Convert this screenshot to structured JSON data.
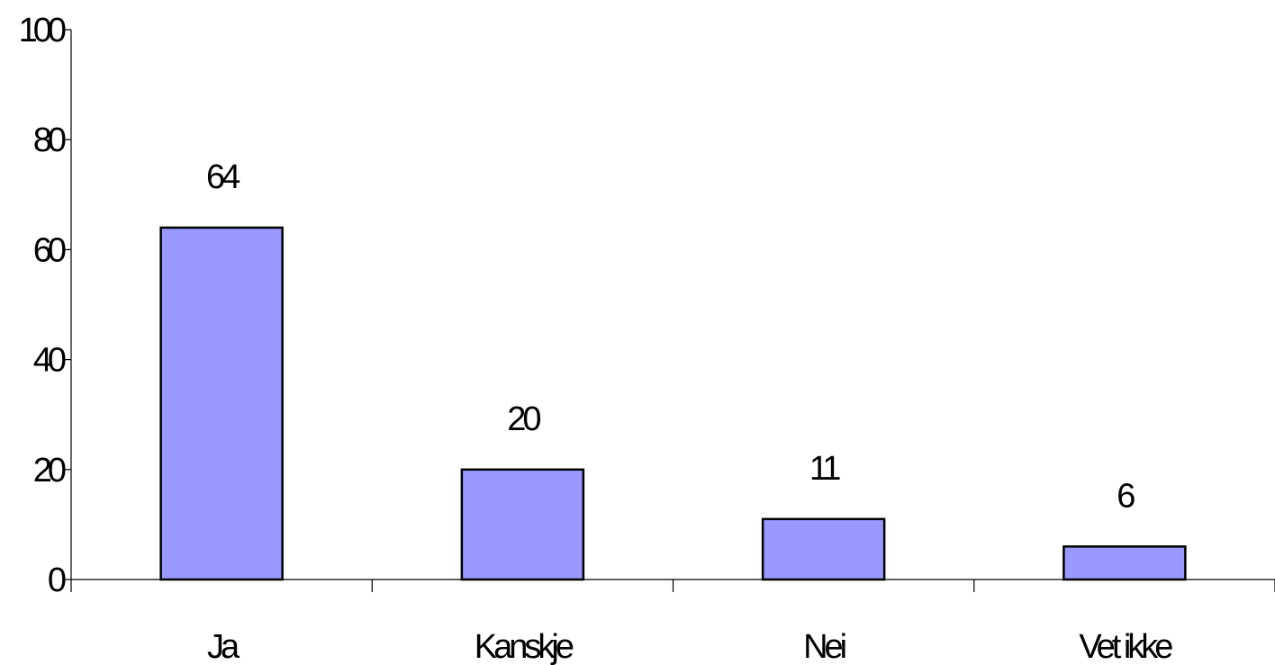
{
  "chart_data": {
    "type": "bar",
    "categories": [
      "Ja",
      "Kanskje",
      "Nei",
      "Vet ikke"
    ],
    "values": [
      64,
      20,
      11,
      6
    ],
    "data_labels": [
      "64",
      "20",
      "11",
      "6"
    ],
    "title": "",
    "xlabel": "",
    "ylabel": "",
    "ylim": [
      0,
      100
    ],
    "yticks": [
      0,
      20,
      40,
      60,
      80,
      100
    ],
    "grid": false,
    "legend": "none",
    "bar_color": "#9999ff",
    "bar_edge_color": "#000000"
  }
}
